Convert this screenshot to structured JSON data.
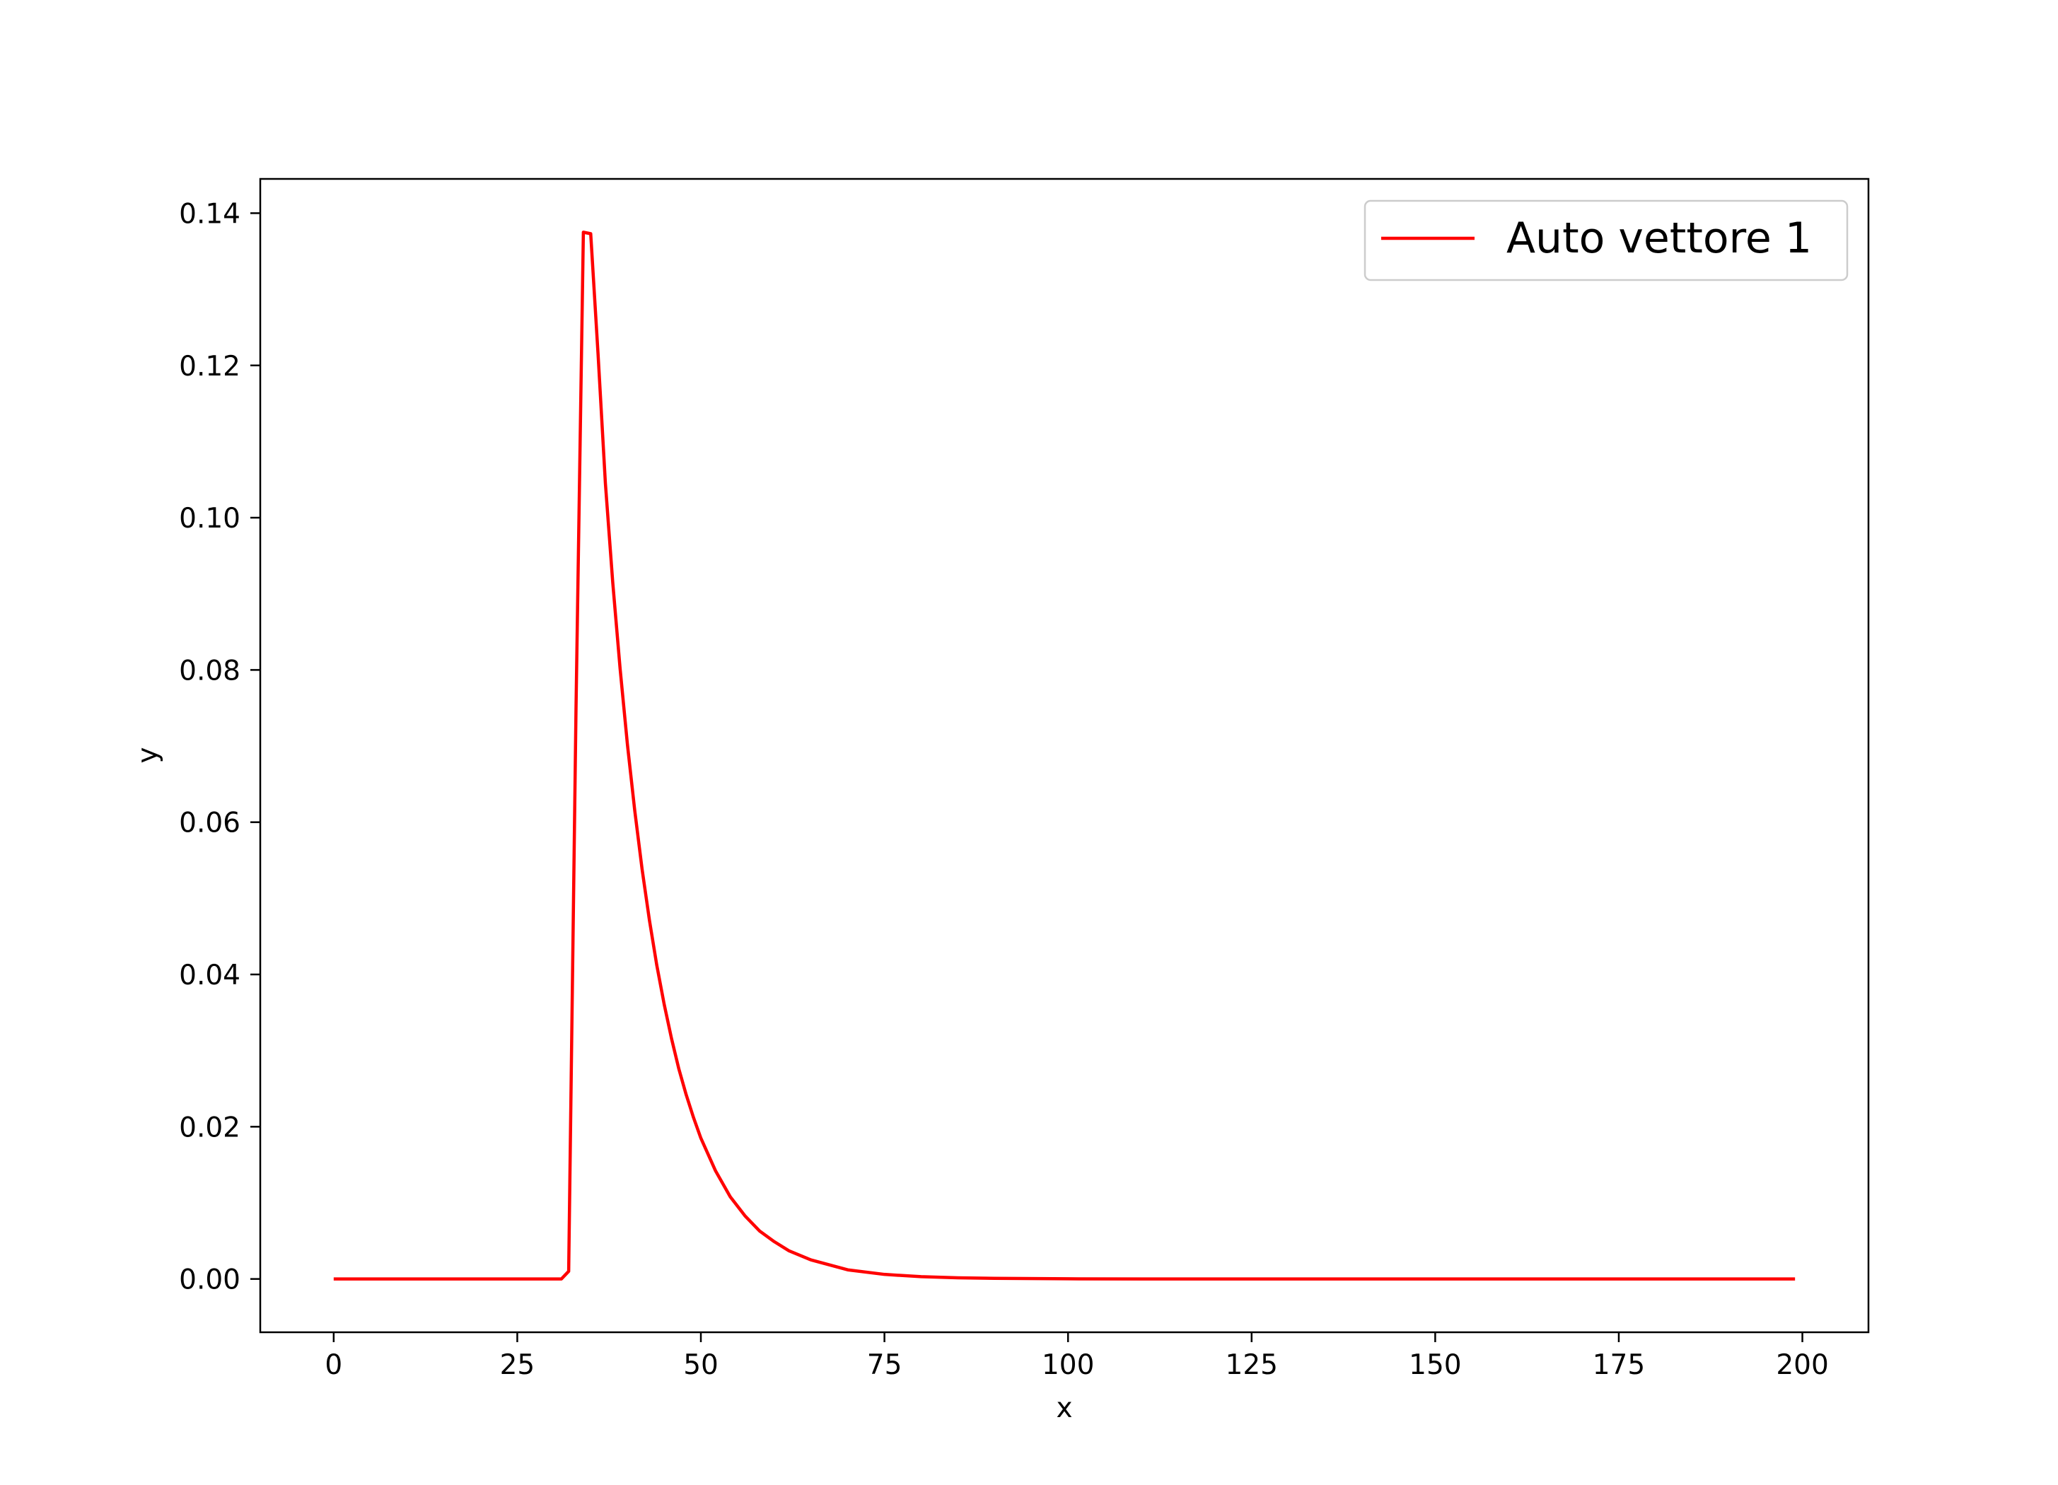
{
  "chart_data": {
    "type": "line",
    "title": "",
    "xlabel": "x",
    "ylabel": "y",
    "xlim": [
      -10,
      209
    ],
    "ylim": [
      -0.007,
      0.1445
    ],
    "x_ticks": [
      0,
      25,
      50,
      75,
      100,
      125,
      150,
      175,
      200
    ],
    "y_ticks": [
      0.0,
      0.02,
      0.04,
      0.06,
      0.08,
      0.1,
      0.12,
      0.14
    ],
    "x_tick_labels": [
      "0",
      "25",
      "50",
      "75",
      "100",
      "125",
      "150",
      "175",
      "200"
    ],
    "y_tick_labels": [
      "0.00",
      "0.02",
      "0.04",
      "0.06",
      "0.08",
      "0.10",
      "0.12",
      "0.14"
    ],
    "grid": false,
    "legend": {
      "position": "upper-right"
    },
    "series": [
      {
        "name": "Auto vettore 1",
        "color": "#ff0000",
        "x": [
          0,
          31,
          32,
          33,
          34,
          35,
          36,
          37,
          38,
          39,
          40,
          41,
          42,
          43,
          44,
          45,
          46,
          47,
          48,
          49,
          50,
          52,
          54,
          56,
          58,
          60,
          62,
          65,
          70,
          75,
          80,
          85,
          90,
          100,
          110,
          125,
          150,
          175,
          199
        ],
        "y": [
          0,
          0,
          0.001,
          0.075,
          0.1375,
          0.1373,
          0.1215,
          0.1045,
          0.0915,
          0.0802,
          0.0702,
          0.0615,
          0.0538,
          0.0471,
          0.0412,
          0.0361,
          0.0316,
          0.0276,
          0.0242,
          0.0212,
          0.0185,
          0.0142,
          0.0108,
          0.0083,
          0.0063,
          0.0049,
          0.0037,
          0.0025,
          0.0012,
          0.0006,
          0.0003,
          0.00015,
          8e-05,
          2e-05,
          5e-06,
          0,
          0,
          0,
          0
        ]
      }
    ]
  }
}
